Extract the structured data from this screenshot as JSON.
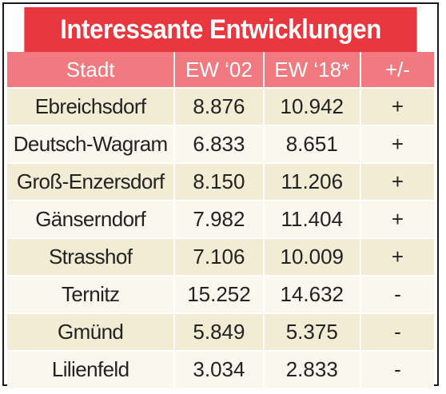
{
  "title": "Interessante Entwicklungen",
  "colors": {
    "title_bg": "#e8373f",
    "header_bg": "#f07a7f",
    "row_odd": "#f2ecd4",
    "row_even": "#faf8ee"
  },
  "chart_data": {
    "type": "table",
    "title": "Interessante Entwicklungen",
    "columns": [
      "Stadt",
      "EW ‘02",
      "EW ‘18*",
      "+/-"
    ],
    "rows": [
      [
        "Ebreichsdorf",
        "8.876",
        "10.942",
        "+"
      ],
      [
        "Deutsch-Wagram",
        "6.833",
        "8.651",
        "+"
      ],
      [
        "Groß-Enzersdorf",
        "8.150",
        "11.206",
        "+"
      ],
      [
        "Gänserndorf",
        "7.982",
        "11.404",
        "+"
      ],
      [
        "Strasshof",
        "7.106",
        "10.009",
        "+"
      ],
      [
        "Ternitz",
        "15.252",
        "14.632",
        "-"
      ],
      [
        "Gmünd",
        "5.849",
        "5.375",
        "-"
      ],
      [
        "Lilienfeld",
        "3.034",
        "2.833",
        "-"
      ]
    ]
  }
}
